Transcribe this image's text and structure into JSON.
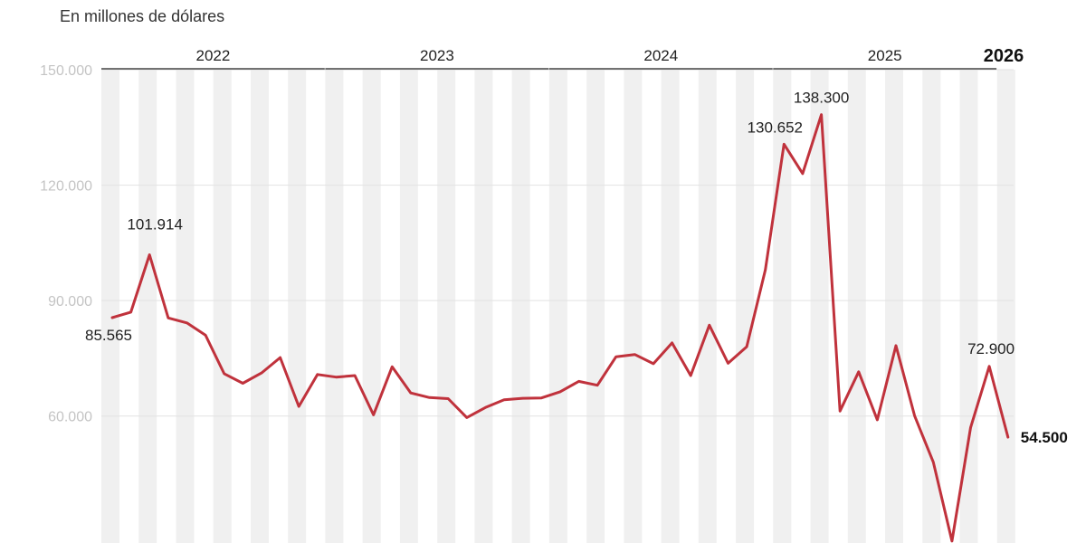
{
  "chart_data": {
    "type": "line",
    "subtitle": "En millones de dólares",
    "yticks": [
      "60.000",
      "90.000",
      "120.000",
      "150.000"
    ],
    "ytick_values": [
      60000,
      90000,
      120000,
      150000
    ],
    "ylim": [
      27000,
      150000
    ],
    "grid": true,
    "years": [
      {
        "label": "2022",
        "months": 12,
        "bold": false
      },
      {
        "label": "2023",
        "months": 12,
        "bold": false
      },
      {
        "label": "2024",
        "months": 12,
        "bold": false
      },
      {
        "label": "2025",
        "months": 12,
        "bold": false
      },
      {
        "label": "2026",
        "months": 1,
        "bold": true
      }
    ],
    "series": [
      {
        "color": "#c0323c",
        "values": [
          85565,
          87000,
          101914,
          85500,
          84200,
          81000,
          71000,
          68500,
          71200,
          75200,
          62500,
          70800,
          70100,
          70500,
          60300,
          72800,
          66000,
          64800,
          64500,
          59600,
          62200,
          64200,
          64600,
          64700,
          66300,
          69000,
          68000,
          75400,
          76000,
          73600,
          79000,
          70500,
          83600,
          73700,
          78000,
          98000,
          130652,
          123000,
          138300,
          61300,
          71500,
          59000,
          78300,
          60000,
          48000,
          27500,
          57000,
          72900,
          54500
        ]
      }
    ],
    "annotations": [
      {
        "index": 0,
        "text": "85.565",
        "bold": false
      },
      {
        "index": 2,
        "text": "101.914",
        "bold": false
      },
      {
        "index": 36,
        "text": "130.652",
        "bold": false
      },
      {
        "index": 38,
        "text": "138.300",
        "bold": false
      },
      {
        "index": 47,
        "text": "72.900",
        "bold": false
      },
      {
        "index": 48,
        "text": "54.500",
        "bold": true
      }
    ]
  }
}
